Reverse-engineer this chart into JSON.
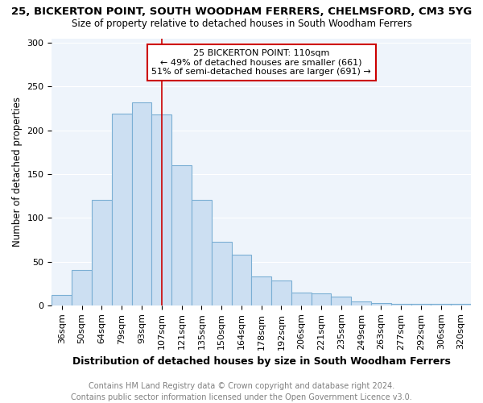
{
  "title": "25, BICKERTON POINT, SOUTH WOODHAM FERRERS, CHELMSFORD, CM3 5YG",
  "subtitle": "Size of property relative to detached houses in South Woodham Ferrers",
  "xlabel": "Distribution of detached houses by size in South Woodham Ferrers",
  "ylabel": "Number of detached properties",
  "categories": [
    "36sqm",
    "50sqm",
    "64sqm",
    "79sqm",
    "93sqm",
    "107sqm",
    "121sqm",
    "135sqm",
    "150sqm",
    "164sqm",
    "178sqm",
    "192sqm",
    "206sqm",
    "221sqm",
    "235sqm",
    "249sqm",
    "263sqm",
    "277sqm",
    "292sqm",
    "306sqm",
    "320sqm"
  ],
  "values": [
    12,
    40,
    120,
    219,
    232,
    218,
    160,
    120,
    73,
    58,
    33,
    28,
    15,
    14,
    10,
    4,
    3,
    2,
    2,
    2,
    2
  ],
  "bar_color": "#ccdff2",
  "bar_edge_color": "#7bafd4",
  "vline_x_index": 5,
  "annotation_text_line1": "25 BICKERTON POINT: 110sqm",
  "annotation_text_line2": "← 49% of detached houses are smaller (661)",
  "annotation_text_line3": "51% of semi-detached houses are larger (691) →",
  "annotation_box_color": "white",
  "annotation_border_color": "#cc0000",
  "vline_color": "#cc0000",
  "ylim": [
    0,
    305
  ],
  "yticks": [
    0,
    50,
    100,
    150,
    200,
    250,
    300
  ],
  "footer_line1": "Contains HM Land Registry data © Crown copyright and database right 2024.",
  "footer_line2": "Contains public sector information licensed under the Open Government Licence v3.0.",
  "bg_color": "#eef4fb",
  "grid_color": "#ffffff",
  "title_fontsize": 9.5,
  "subtitle_fontsize": 8.5,
  "xlabel_fontsize": 9,
  "ylabel_fontsize": 8.5,
  "annotation_fontsize": 8,
  "footer_fontsize": 7,
  "tick_fontsize": 8
}
